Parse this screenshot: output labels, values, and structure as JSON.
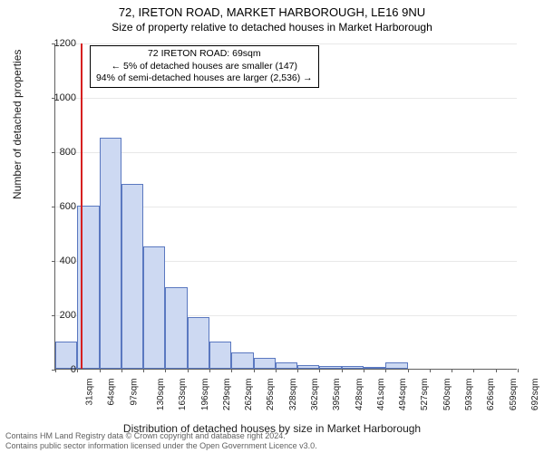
{
  "title_main": "72, IRETON ROAD, MARKET HARBOROUGH, LE16 9NU",
  "title_sub": "Size of property relative to detached houses in Market Harborough",
  "y_axis_title": "Number of detached properties",
  "x_axis_title": "Distribution of detached houses by size in Market Harborough",
  "chart": {
    "type": "histogram",
    "ylim": [
      0,
      1200
    ],
    "ytick_step": 200,
    "y_ticks": [
      0,
      200,
      400,
      600,
      800,
      1000,
      1200
    ],
    "x_tick_labels": [
      "31sqm",
      "64sqm",
      "97sqm",
      "130sqm",
      "163sqm",
      "196sqm",
      "229sqm",
      "262sqm",
      "295sqm",
      "328sqm",
      "362sqm",
      "395sqm",
      "428sqm",
      "461sqm",
      "494sqm",
      "527sqm",
      "560sqm",
      "593sqm",
      "626sqm",
      "659sqm",
      "692sqm"
    ],
    "bar_values": [
      100,
      600,
      850,
      680,
      450,
      300,
      190,
      100,
      60,
      40,
      25,
      15,
      10,
      10,
      5,
      25,
      0,
      0,
      0,
      0,
      0
    ],
    "bar_fill": "#cdd9f2",
    "bar_stroke": "#5a78c0",
    "background_color": "#ffffff",
    "grid_color": "#e8e8e8",
    "axis_color": "#606060",
    "marker_color": "#d62020",
    "marker_value_sqm": 69,
    "x_min_sqm": 31,
    "x_bin_width_sqm": 33
  },
  "infobox": {
    "line1": "72 IRETON ROAD: 69sqm",
    "line2": "← 5% of detached houses are smaller (147)",
    "line3": "94% of semi-detached houses are larger (2,536) →"
  },
  "footer_line1": "Contains HM Land Registry data © Crown copyright and database right 2024.",
  "footer_line2": "Contains public sector information licensed under the Open Government Licence v3.0."
}
